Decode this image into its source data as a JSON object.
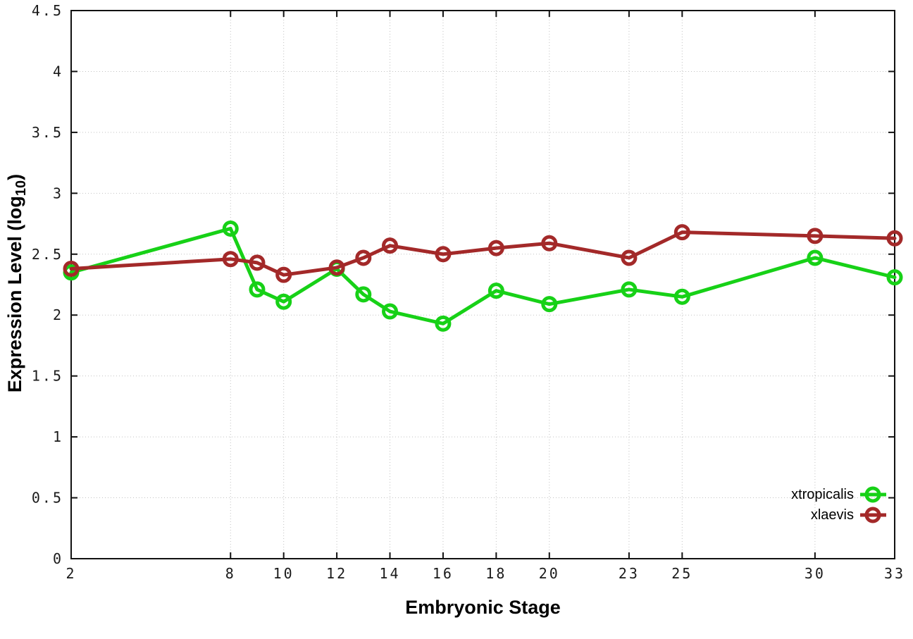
{
  "axes": {
    "x_title": "Embryonic Stage",
    "y_title_prefix": "Expression Level (log",
    "y_title_sub": "10",
    "y_title_suffix": ")"
  },
  "chart_data": {
    "type": "line",
    "title": "",
    "xlabel": "Embryonic Stage",
    "ylabel": "Expression Level (log10)",
    "x": [
      2,
      8,
      9,
      10,
      12,
      13,
      14,
      16,
      18,
      20,
      23,
      25,
      30,
      33
    ],
    "series": [
      {
        "name": "xtropicalis",
        "color": "#17d117",
        "values": [
          2.35,
          2.71,
          2.21,
          2.11,
          2.38,
          2.17,
          2.03,
          1.93,
          2.2,
          2.09,
          2.21,
          2.15,
          2.47,
          2.31
        ]
      },
      {
        "name": "xlaevis",
        "color": "#a32929",
        "values": [
          2.38,
          2.46,
          2.43,
          2.33,
          2.39,
          2.47,
          2.57,
          2.5,
          2.55,
          2.59,
          2.47,
          2.68,
          2.65,
          2.63
        ]
      }
    ],
    "x_ticks": [
      2,
      8,
      10,
      12,
      14,
      16,
      18,
      20,
      23,
      25,
      30,
      33
    ],
    "y_ticks": [
      0,
      0.5,
      1,
      1.5,
      2,
      2.5,
      3,
      3.5,
      4,
      4.5
    ],
    "xlim": [
      2,
      33
    ],
    "ylim": [
      0,
      4.5
    ],
    "grid": true,
    "legend": {
      "position": "inside-bottom-right",
      "entries": [
        "xtropicalis",
        "xlaevis"
      ]
    },
    "marker": "open-circle",
    "style": {
      "background": "#ffffff",
      "grid_color": "#c2c2c2",
      "frame_color": "#111111",
      "tick_color": "#111111",
      "line_width": 5,
      "marker_radius": 9
    }
  }
}
